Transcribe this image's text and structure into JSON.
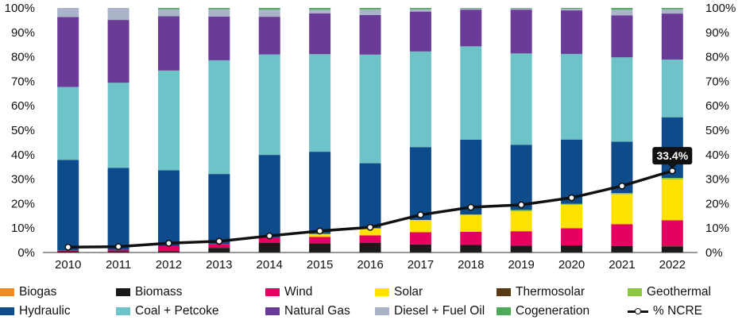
{
  "chart_data": {
    "type": "bar",
    "stacked": true,
    "categories": [
      "2010",
      "2011",
      "2012",
      "2013",
      "2014",
      "2015",
      "2016",
      "2017",
      "2018",
      "2019",
      "2020",
      "2021",
      "2022"
    ],
    "ylim": [
      0,
      100
    ],
    "y_ticks": [
      "0%",
      "10%",
      "20%",
      "30%",
      "40%",
      "50%",
      "60%",
      "70%",
      "80%",
      "90%",
      "100%"
    ],
    "y_axis_right": true,
    "grid": false,
    "legend_position": "bottom",
    "series": [
      {
        "name": "Biogas",
        "color": "#f08a24",
        "values": [
          0.1,
          0.1,
          0.1,
          0.1,
          0.1,
          0.1,
          0.1,
          0.1,
          0.1,
          0.1,
          0.1,
          0.1,
          0.1
        ]
      },
      {
        "name": "Biomass",
        "color": "#1a1a1a",
        "values": [
          0.4,
          0.4,
          0.4,
          1.8,
          3.8,
          3.6,
          3.8,
          3.2,
          3.0,
          2.7,
          2.8,
          2.6,
          2.4
        ]
      },
      {
        "name": "Thermosolar",
        "color": "#5a3a14",
        "values": [
          0,
          0,
          0,
          0,
          0,
          0,
          0,
          0,
          0,
          0,
          0,
          0,
          0.3
        ]
      },
      {
        "name": "Wind",
        "color": "#e3005e",
        "values": [
          0.4,
          0.6,
          2.1,
          1.6,
          2.0,
          2.7,
          3.1,
          5.0,
          5.4,
          5.9,
          7.0,
          8.9,
          10.4
        ]
      },
      {
        "name": "Solar",
        "color": "#fde200",
        "values": [
          0,
          0,
          0,
          0,
          0,
          1.2,
          2.9,
          5.0,
          7.0,
          8.2,
          9.6,
          12.2,
          16.7
        ]
      },
      {
        "name": "Geothermal",
        "color": "#8dc63f",
        "values": [
          0,
          0,
          0,
          0,
          0,
          0,
          0,
          0,
          0,
          0.5,
          0.4,
          0.5,
          0.6
        ]
      },
      {
        "name": "Hydraulic",
        "color": "#0e4b8a",
        "values": [
          37.0,
          33.5,
          31.0,
          28.6,
          34.0,
          33.6,
          26.6,
          29.8,
          30.6,
          26.6,
          26.3,
          21.0,
          24.8
        ]
      },
      {
        "name": "Coal + Petcoke",
        "color": "#6ec3c9",
        "values": [
          29.8,
          34.8,
          40.8,
          46.5,
          41.1,
          39.9,
          44.4,
          39.1,
          38.2,
          37.4,
          35.0,
          34.5,
          23.6
        ]
      },
      {
        "name": "Natural Gas",
        "color": "#6b3b98",
        "values": [
          28.6,
          25.7,
          22.2,
          17.9,
          15.4,
          16.7,
          16.2,
          16.3,
          15.0,
          17.9,
          17.8,
          17.2,
          18.8
        ]
      },
      {
        "name": "Diesel + Fuel Oil",
        "color": "#aab4c8",
        "values": [
          3.7,
          4.9,
          2.9,
          3.0,
          2.9,
          1.5,
          2.3,
          1.0,
          0.5,
          0.6,
          0.7,
          2.3,
          1.8
        ]
      },
      {
        "name": "Cogeneration",
        "color": "#4daa5a",
        "values": [
          0,
          0,
          0.5,
          0.5,
          0.7,
          0.7,
          0.6,
          0.5,
          0.2,
          0.1,
          0.3,
          0.7,
          0.5
        ]
      }
    ],
    "line_series": {
      "name": "% NCRE",
      "color": "#111111",
      "values": [
        2.2,
        2.4,
        3.8,
        4.6,
        6.8,
        8.8,
        10.3,
        15.4,
        18.5,
        19.5,
        22.4,
        27.2,
        33.4
      ],
      "callout_label": "33.4%"
    }
  },
  "legend": [
    {
      "label": "Biogas",
      "kind": "box",
      "color": "#f08a24"
    },
    {
      "label": "Biomass",
      "kind": "box",
      "color": "#1a1a1a"
    },
    {
      "label": "Wind",
      "kind": "box",
      "color": "#e3005e"
    },
    {
      "label": "Solar",
      "kind": "box",
      "color": "#fde200"
    },
    {
      "label": "Thermosolar",
      "kind": "box",
      "color": "#5a3a14"
    },
    {
      "label": "Geothermal",
      "kind": "box",
      "color": "#8dc63f"
    },
    {
      "label": "Hydraulic",
      "kind": "box",
      "color": "#0e4b8a"
    },
    {
      "label": "Coal + Petcoke",
      "kind": "box",
      "color": "#6ec3c9"
    },
    {
      "label": "Natural Gas",
      "kind": "box",
      "color": "#6b3b98"
    },
    {
      "label": "Diesel + Fuel Oil",
      "kind": "box",
      "color": "#aab4c8"
    },
    {
      "label": "Cogeneration",
      "kind": "box",
      "color": "#4daa5a"
    },
    {
      "label": "% NCRE",
      "kind": "line",
      "color": "#111111"
    }
  ]
}
